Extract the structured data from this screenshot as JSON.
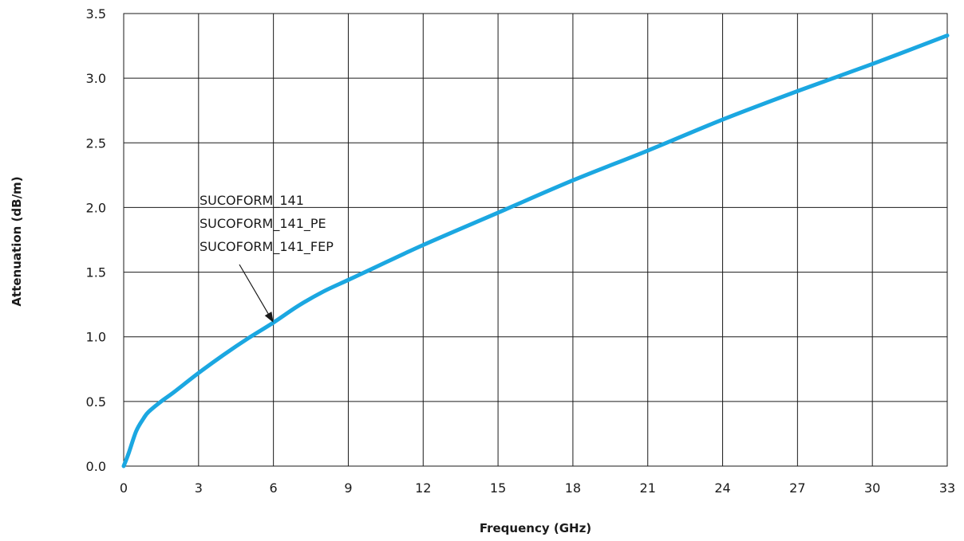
{
  "chart_data": {
    "type": "line",
    "title": "",
    "xlabel": "Frequency (GHz)",
    "ylabel": "Attenuation (dB/m)",
    "xlim": [
      0,
      33
    ],
    "ylim": [
      0,
      3.5
    ],
    "grid": true,
    "x_ticks": [
      "0",
      "3",
      "6",
      "9",
      "12",
      "15",
      "18",
      "21",
      "24",
      "27",
      "30",
      "33"
    ],
    "y_ticks": [
      "0.0",
      "0.5",
      "1.0",
      "1.5",
      "2.0",
      "2.5",
      "3.0",
      "3.5"
    ],
    "series": [
      {
        "name": "SUCOFORM_141",
        "color": "#1ba7e1",
        "x": [
          0,
          0.2,
          0.5,
          0.8,
          1,
          1.5,
          2,
          3,
          4,
          5,
          6,
          7,
          8,
          9,
          10,
          12,
          15,
          18,
          21,
          24,
          27,
          30,
          33
        ],
        "y": [
          0,
          0.1,
          0.27,
          0.37,
          0.42,
          0.5,
          0.57,
          0.72,
          0.86,
          0.99,
          1.11,
          1.24,
          1.35,
          1.44,
          1.53,
          1.71,
          1.96,
          2.21,
          2.44,
          2.68,
          2.9,
          3.11,
          3.33
        ]
      }
    ],
    "annotation": {
      "lines": [
        "SUCOFORM_141",
        "SUCOFORM_141_PE",
        "SUCOFORM_141_FEP"
      ],
      "target_x": 6,
      "target_y": 1.11
    }
  }
}
